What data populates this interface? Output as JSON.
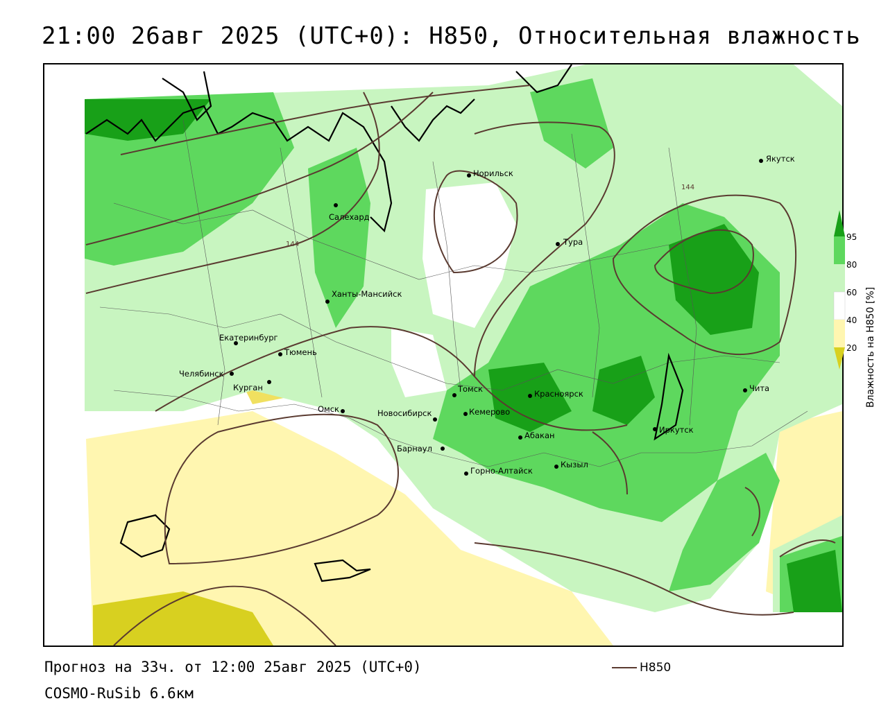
{
  "title": "21:00 26авг 2025 (UTC+0): H850, Относительная влажность",
  "footer": {
    "forecast": "Прогноз на 33ч. от 12:00 25авг 2025 (UTC+0)",
    "model": "COSMO-RuSib 6.6км",
    "contour_legend": "H850"
  },
  "legend": {
    "title": "Влажность на H850 [%]",
    "ticks": [
      "95",
      "80",
      "60",
      "40",
      "20"
    ],
    "colors": {
      "very_dry": "#d8d020",
      "dry": "#fff6b0",
      "neutral": "#ffffff",
      "moist": "#c8f5c0",
      "wet": "#5ed85e",
      "saturated": "#18a018"
    }
  },
  "contour_color": "#5a3a30",
  "contour_labels": [
    "144",
    "144"
  ],
  "cities": [
    {
      "name": "Якутск"
    },
    {
      "name": "Норильск"
    },
    {
      "name": "Салехард"
    },
    {
      "name": "Тура"
    },
    {
      "name": "Ханты-Мансийск"
    },
    {
      "name": "Екатеринбург"
    },
    {
      "name": "Тюмень"
    },
    {
      "name": "Челябинск"
    },
    {
      "name": "Курган"
    },
    {
      "name": "Омск"
    },
    {
      "name": "Новосибирск"
    },
    {
      "name": "Томск"
    },
    {
      "name": "Кемерово"
    },
    {
      "name": "Красноярск"
    },
    {
      "name": "Абакан"
    },
    {
      "name": "Барнаул"
    },
    {
      "name": "Горно-Алтайск"
    },
    {
      "name": "Кызыл"
    },
    {
      "name": "Иркутск"
    },
    {
      "name": "Чита"
    }
  ]
}
